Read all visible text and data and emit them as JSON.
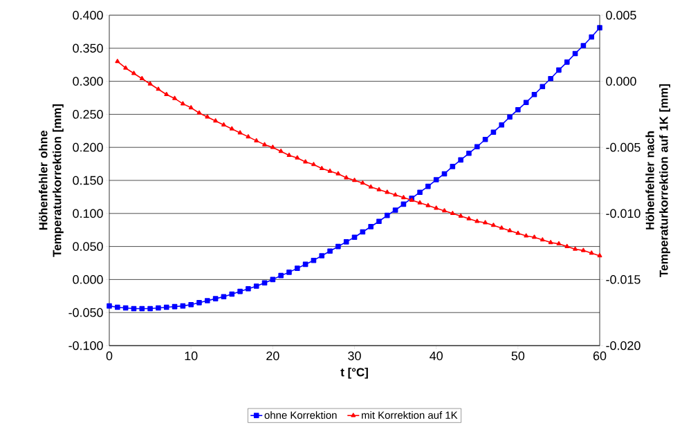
{
  "chart_data": {
    "type": "line",
    "xlabel": "t [°C]",
    "ylabel": "Höhenfehler ohne Temperaturkorrektion [mm]",
    "y2label": "Höhenfehler nach Temperaturkorrektion auf 1K [mm]",
    "xlim": [
      0,
      60
    ],
    "xticks": [
      0,
      10,
      20,
      30,
      40,
      50,
      60
    ],
    "ylim": [
      -0.1,
      0.4
    ],
    "yticks": [
      {
        "value": -0.1,
        "label": "-0.100"
      },
      {
        "value": -0.05,
        "label": "-0.050"
      },
      {
        "value": 0,
        "label": "0.000"
      },
      {
        "value": 0.05,
        "label": "0.050"
      },
      {
        "value": 0.1,
        "label": "0.100"
      },
      {
        "value": 0.15,
        "label": "0.150"
      },
      {
        "value": 0.2,
        "label": "0.200"
      },
      {
        "value": 0.25,
        "label": "0.250"
      },
      {
        "value": 0.3,
        "label": "0.300"
      },
      {
        "value": 0.35,
        "label": "0.350"
      },
      {
        "value": 0.4,
        "label": "0.400"
      }
    ],
    "y2lim": [
      -0.02,
      0.005
    ],
    "y2ticks": [
      {
        "value": -0.02,
        "label": "-0.020"
      },
      {
        "value": -0.015,
        "label": "-0.015"
      },
      {
        "value": -0.01,
        "label": "-0.010"
      },
      {
        "value": -0.005,
        "label": "-0.005"
      },
      {
        "value": 0,
        "label": "0.000"
      },
      {
        "value": 0.005,
        "label": "0.005"
      }
    ],
    "grid": "y",
    "legend": "bottom",
    "line_style": "solid",
    "series": [
      {
        "name": "ohne Korrektion",
        "color": "#0000ff",
        "marker": "square",
        "x": [
          0,
          1,
          2,
          3,
          4,
          5,
          6,
          7,
          8,
          9,
          10,
          11,
          12,
          13,
          14,
          15,
          16,
          17,
          18,
          19,
          20,
          21,
          22,
          23,
          24,
          25,
          26,
          27,
          28,
          29,
          30,
          31,
          32,
          33,
          34,
          35,
          36,
          37,
          38,
          39,
          40,
          41,
          42,
          43,
          44,
          45,
          46,
          47,
          48,
          49,
          50,
          51,
          52,
          53,
          54,
          55,
          56,
          57,
          58,
          59,
          60
        ],
        "values": [
          -0.04,
          -0.042,
          -0.043,
          -0.044,
          -0.044,
          -0.044,
          -0.043,
          -0.042,
          -0.041,
          -0.04,
          -0.038,
          -0.035,
          -0.032,
          -0.029,
          -0.026,
          -0.022,
          -0.018,
          -0.014,
          -0.01,
          -0.005,
          0.0,
          0.006,
          0.011,
          0.017,
          0.023,
          0.029,
          0.036,
          0.043,
          0.05,
          0.057,
          0.064,
          0.072,
          0.08,
          0.088,
          0.097,
          0.105,
          0.114,
          0.123,
          0.132,
          0.141,
          0.151,
          0.16,
          0.171,
          0.181,
          0.191,
          0.201,
          0.212,
          0.223,
          0.234,
          0.246,
          0.257,
          0.268,
          0.28,
          0.292,
          0.304,
          0.317,
          0.329,
          0.342,
          0.354,
          0.367,
          0.381
        ]
      },
      {
        "name": "mit Korrektion auf 1K",
        "color": "#ff0000",
        "marker": "triangle",
        "axis": "y2",
        "x": [
          1,
          2,
          3,
          4,
          5,
          6,
          7,
          8,
          9,
          10,
          11,
          12,
          13,
          14,
          15,
          16,
          17,
          18,
          19,
          20,
          21,
          22,
          23,
          24,
          25,
          26,
          27,
          28,
          29,
          30,
          31,
          32,
          33,
          34,
          35,
          36,
          37,
          38,
          39,
          40,
          41,
          42,
          43,
          44,
          45,
          46,
          47,
          48,
          49,
          50,
          51,
          52,
          53,
          54,
          55,
          56,
          57,
          58,
          59,
          60
        ],
        "values": [
          0.0015,
          0.001,
          0.0006,
          0.0002,
          -0.0002,
          -0.0006,
          -0.001,
          -0.0013,
          -0.0017,
          -0.002,
          -0.0024,
          -0.0027,
          -0.003,
          -0.0033,
          -0.0036,
          -0.0039,
          -0.0042,
          -0.0045,
          -0.0048,
          -0.005,
          -0.0053,
          -0.0056,
          -0.0058,
          -0.0061,
          -0.0063,
          -0.0066,
          -0.0068,
          -0.007,
          -0.0073,
          -0.0075,
          -0.0077,
          -0.008,
          -0.0082,
          -0.0084,
          -0.0086,
          -0.0088,
          -0.009,
          -0.0092,
          -0.0094,
          -0.0096,
          -0.0098,
          -0.01,
          -0.0102,
          -0.0104,
          -0.0106,
          -0.0107,
          -0.0109,
          -0.0111,
          -0.0113,
          -0.0115,
          -0.0117,
          -0.0118,
          -0.012,
          -0.0122,
          -0.0123,
          -0.0125,
          -0.0127,
          -0.0128,
          -0.013,
          -0.0132
        ]
      }
    ]
  }
}
